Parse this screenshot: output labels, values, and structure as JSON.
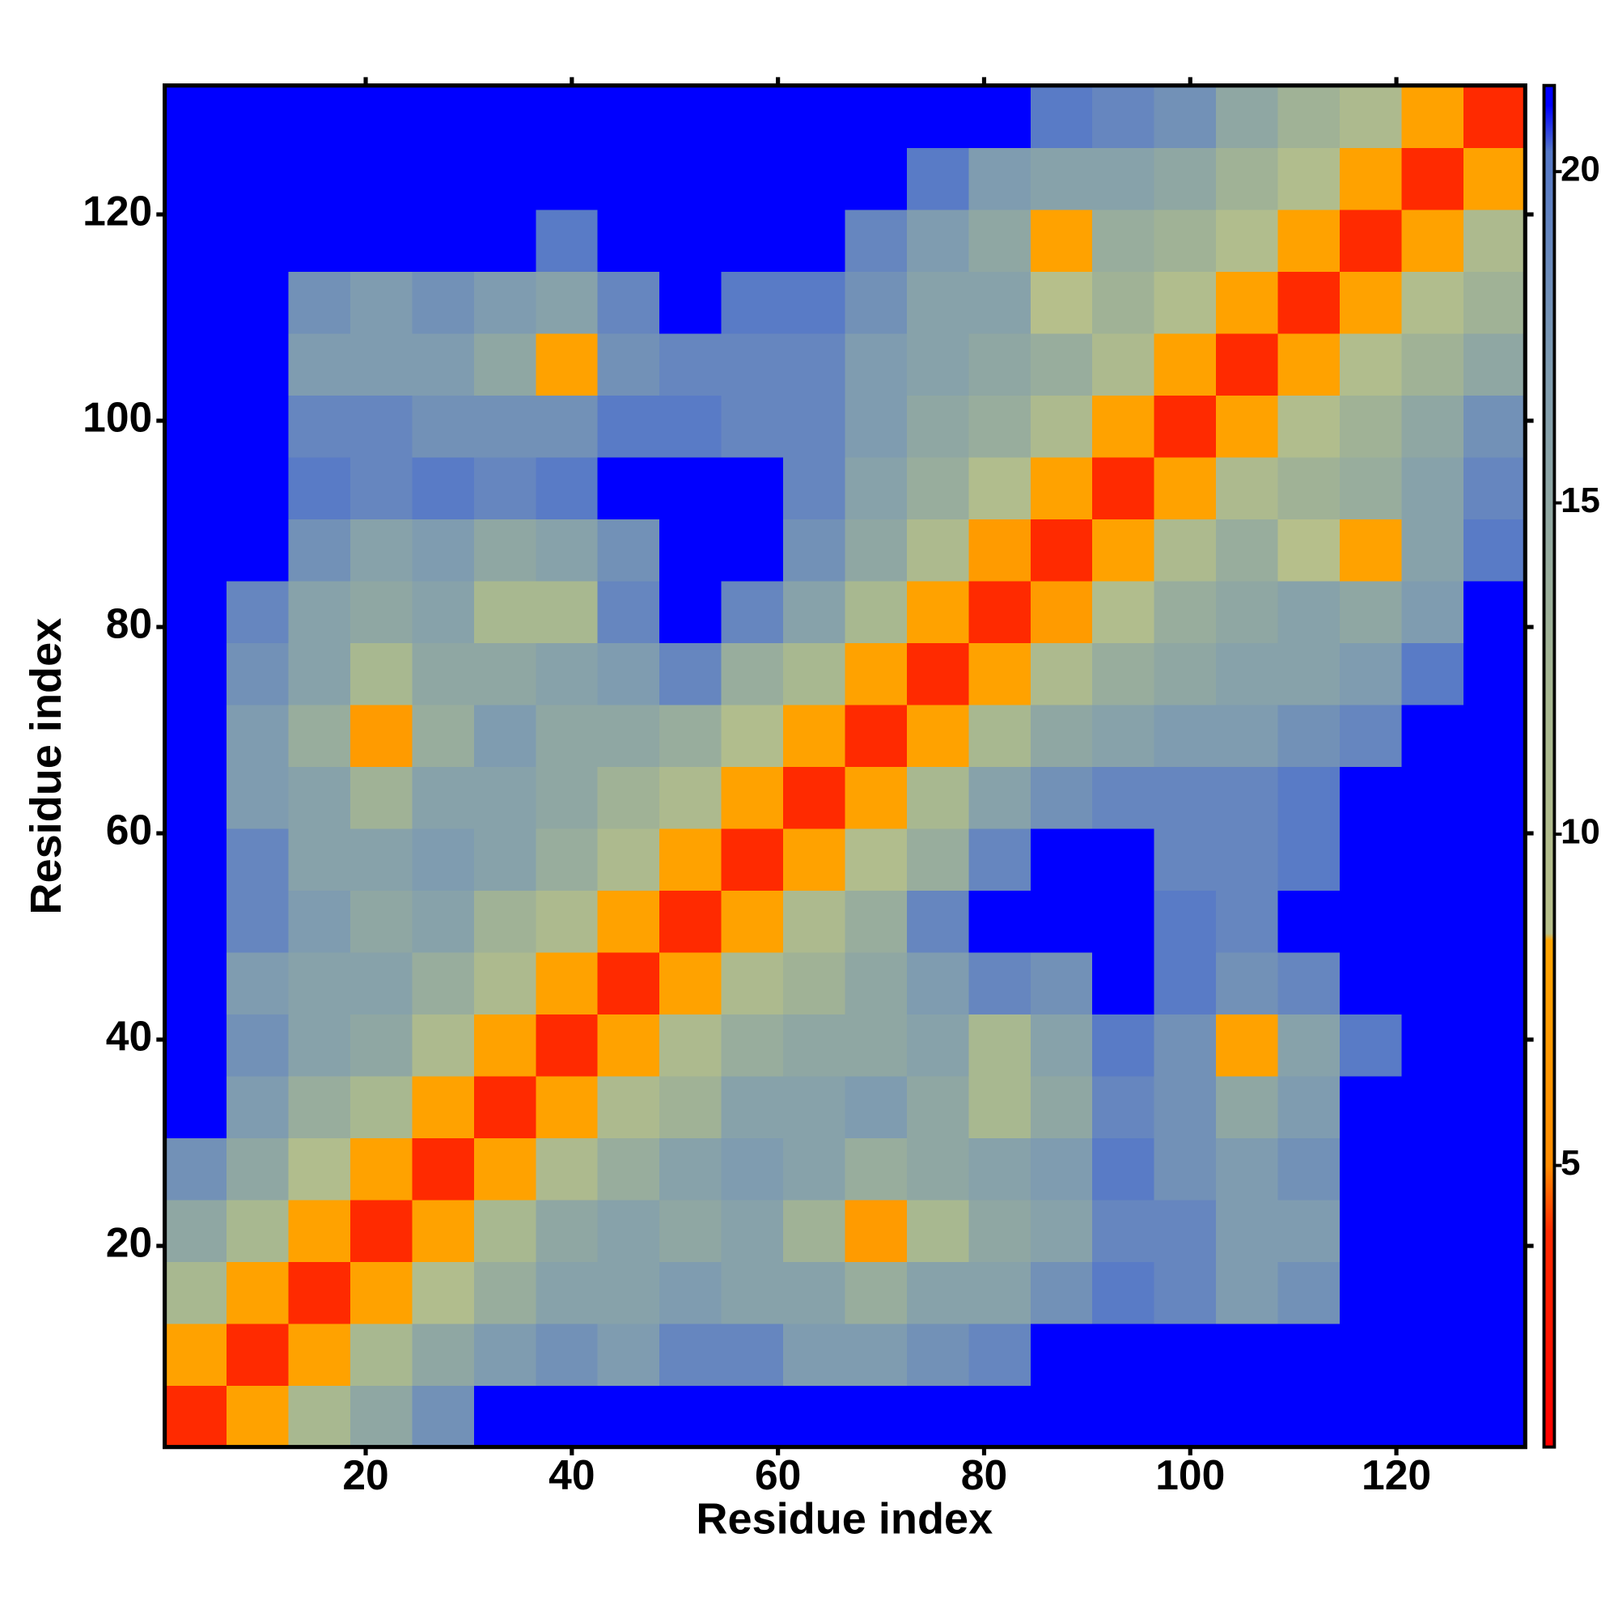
{
  "chart_data": {
    "type": "heatmap",
    "xlabel": "Residue index",
    "ylabel": "Residue index",
    "x_bins": [
      0.5,
      6.5,
      12.5,
      18.5,
      24.5,
      30.5,
      36.5,
      42.5,
      48.5,
      54.5,
      60.5,
      66.5,
      72.5,
      78.5,
      84.5,
      90.5,
      96.5,
      102.5,
      108.5,
      114.5,
      120.5,
      126.5,
      132.5
    ],
    "y_bins": [
      0.5,
      6.5,
      12.5,
      18.5,
      24.5,
      30.5,
      36.5,
      42.5,
      48.5,
      54.5,
      60.5,
      66.5,
      72.5,
      78.5,
      84.5,
      90.5,
      96.5,
      102.5,
      108.5,
      114.5,
      120.5,
      126.5,
      132.5
    ],
    "xlim": [
      0.5,
      132.5
    ],
    "ylim": [
      0.5,
      132.5
    ],
    "xticks": [
      20,
      40,
      60,
      80,
      100,
      120
    ],
    "yticks": [
      20,
      40,
      60,
      80,
      100,
      120
    ],
    "clim": [
      0.75,
      21.3
    ],
    "cticks": [
      5,
      10,
      15,
      20
    ],
    "colorscale": [
      [
        0.75,
        "#ff0000"
      ],
      [
        4,
        "#ff2a00"
      ],
      [
        5,
        "#ff8c00"
      ],
      [
        8.4,
        "#ffa500"
      ],
      [
        8.5,
        "#b8c08a"
      ],
      [
        12,
        "#a8b890"
      ],
      [
        17,
        "#7f9cb0"
      ],
      [
        20.3,
        "#5578c8"
      ],
      [
        21,
        "#0000ff"
      ]
    ],
    "values": [
      [
        4,
        8,
        12,
        15,
        18,
        22,
        22,
        22,
        22,
        22,
        22,
        22,
        22,
        22,
        22,
        22,
        22,
        22,
        22,
        22,
        22,
        22
      ],
      [
        8,
        4,
        8,
        12,
        15,
        17,
        18,
        17,
        19,
        19,
        17,
        17,
        18,
        19,
        22,
        22,
        22,
        22,
        22,
        22,
        22,
        22
      ],
      [
        12,
        8,
        4,
        8,
        10,
        14,
        16,
        16,
        17,
        16,
        16,
        14,
        16,
        16,
        18,
        20,
        19,
        17,
        18,
        22,
        22,
        22
      ],
      [
        15,
        12,
        8,
        4,
        8,
        12,
        15,
        16,
        15,
        16,
        13,
        7,
        12,
        15,
        16,
        19,
        19,
        17,
        17,
        22,
        22,
        22
      ],
      [
        18,
        15,
        10,
        8,
        4,
        8,
        11,
        14,
        16,
        17,
        16,
        14,
        15,
        16,
        17,
        20,
        18,
        17,
        18,
        22,
        22,
        22
      ],
      [
        22,
        17,
        14,
        12,
        8,
        4,
        8,
        11,
        13,
        16,
        16,
        17,
        15,
        12,
        15,
        19,
        18,
        15,
        17,
        22,
        22,
        22
      ],
      [
        22,
        18,
        16,
        15,
        11,
        8,
        4,
        8,
        11,
        14,
        15,
        15,
        16,
        12,
        16,
        20,
        18,
        8,
        16,
        20,
        22,
        22
      ],
      [
        22,
        17,
        16,
        16,
        14,
        11,
        8,
        4,
        8,
        11,
        13,
        15,
        17,
        19,
        18,
        22,
        20,
        18,
        19,
        22,
        22,
        22
      ],
      [
        22,
        19,
        17,
        15,
        16,
        13,
        11,
        8,
        4,
        8,
        11,
        14,
        19,
        22,
        22,
        22,
        20,
        19,
        21,
        22,
        22,
        22
      ],
      [
        22,
        19,
        16,
        16,
        17,
        16,
        14,
        11,
        8,
        4,
        8,
        10,
        14,
        19,
        22,
        22,
        19,
        19,
        20,
        22,
        22,
        22
      ],
      [
        22,
        17,
        16,
        13,
        16,
        16,
        15,
        13,
        11,
        8,
        4,
        8,
        12,
        16,
        18,
        19,
        19,
        19,
        20,
        22,
        22,
        22
      ],
      [
        22,
        17,
        14,
        7,
        14,
        17,
        15,
        15,
        14,
        10,
        8,
        4,
        8,
        12,
        15,
        16,
        17,
        17,
        18,
        19,
        22,
        22
      ],
      [
        22,
        18,
        16,
        12,
        15,
        15,
        16,
        17,
        19,
        14,
        12,
        8,
        4,
        8,
        11,
        14,
        15,
        16,
        16,
        17,
        20,
        22
      ],
      [
        22,
        19,
        16,
        15,
        16,
        12,
        12,
        19,
        22,
        19,
        16,
        12,
        8,
        4,
        7,
        10,
        14,
        15,
        16,
        15,
        17,
        22
      ],
      [
        22,
        22,
        18,
        16,
        17,
        15,
        16,
        18,
        22,
        22,
        18,
        15,
        11,
        7,
        4,
        8,
        11,
        14,
        9,
        8,
        16,
        20
      ],
      [
        22,
        22,
        20,
        19,
        20,
        19,
        20,
        22,
        22,
        22,
        19,
        16,
        14,
        10,
        8,
        4,
        8,
        11,
        13,
        14,
        16,
        19
      ],
      [
        22,
        22,
        19,
        19,
        18,
        18,
        18,
        20,
        20,
        19,
        19,
        17,
        15,
        14,
        11,
        8,
        4,
        8,
        10,
        13,
        15,
        18
      ],
      [
        22,
        22,
        17,
        17,
        17,
        15,
        8,
        18,
        19,
        19,
        19,
        17,
        16,
        15,
        14,
        11,
        8,
        4,
        8,
        10,
        13,
        15
      ],
      [
        22,
        22,
        18,
        17,
        18,
        17,
        16,
        19,
        21,
        20,
        20,
        18,
        16,
        16,
        9,
        13,
        10,
        8,
        4,
        8,
        10,
        13
      ],
      [
        22,
        22,
        22,
        22,
        22,
        22,
        20,
        22,
        22,
        22,
        22,
        19,
        17,
        15,
        8,
        14,
        13,
        10,
        8,
        4,
        8,
        11
      ],
      [
        22,
        22,
        22,
        22,
        22,
        22,
        22,
        22,
        22,
        22,
        22,
        22,
        20,
        17,
        16,
        16,
        15,
        13,
        10,
        8,
        4,
        8
      ],
      [
        22,
        22,
        22,
        22,
        22,
        22,
        22,
        22,
        22,
        22,
        22,
        22,
        22,
        22,
        20,
        19,
        18,
        15,
        13,
        11,
        8,
        4
      ]
    ]
  }
}
